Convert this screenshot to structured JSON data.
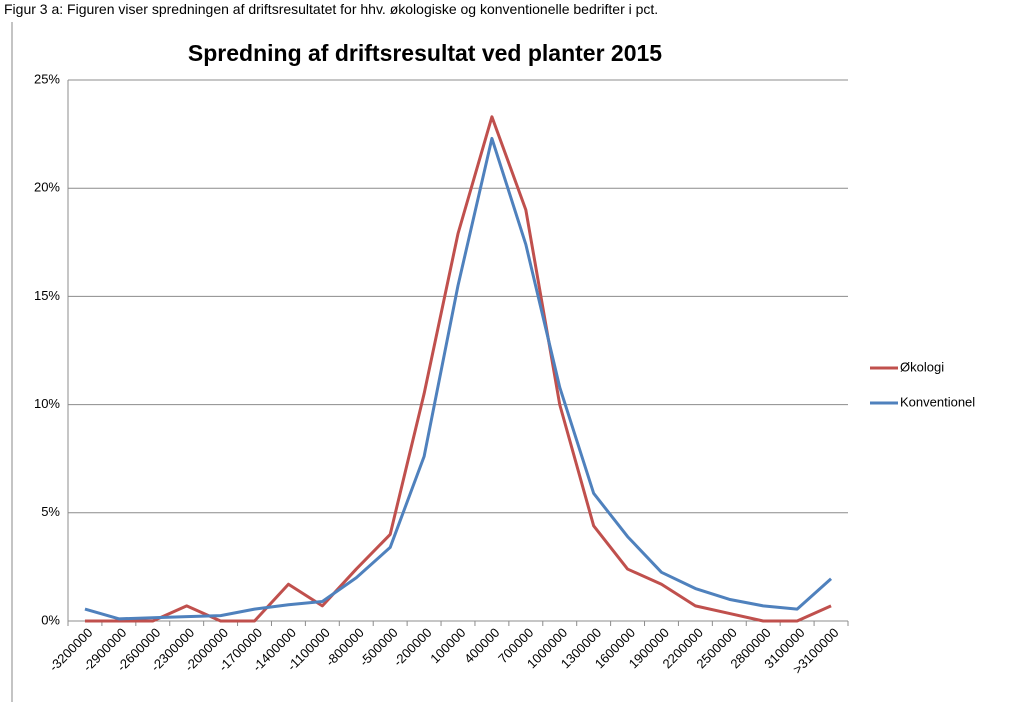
{
  "caption": "Figur 3 a: Figuren viser spredningen af driftsresultatet for hhv. økologiske og konventionelle bedrifter i pct.",
  "chart_data": {
    "type": "line",
    "title": "Spredning af driftsresultat ved planter 2015",
    "categories": [
      "-3200000",
      "-2900000",
      "-2600000",
      "-2300000",
      "-2000000",
      "-1700000",
      "-1400000",
      "-1100000",
      "-800000",
      "-500000",
      "-200000",
      "100000",
      "400000",
      "700000",
      "1000000",
      "1300000",
      "1600000",
      "1900000",
      "2200000",
      "2500000",
      "2800000",
      "3100000",
      ">3100000"
    ],
    "series": [
      {
        "name": "Økologi",
        "color": "#c0504d",
        "values": [
          0,
          0,
          0,
          0.7,
          0,
          0,
          1.7,
          0.7,
          2.4,
          4.0,
          10.5,
          17.9,
          23.3,
          19.0,
          10.0,
          4.4,
          2.4,
          1.7,
          0.7,
          0.35,
          0,
          0,
          0.7
        ]
      },
      {
        "name": "Konventionel",
        "color": "#4f81bd",
        "values": [
          0.55,
          0.1,
          0.15,
          0.2,
          0.25,
          0.55,
          0.75,
          0.9,
          2.0,
          3.4,
          7.6,
          15.5,
          22.3,
          17.4,
          10.8,
          5.9,
          3.9,
          2.25,
          1.5,
          1.0,
          0.7,
          0.55,
          1.95
        ]
      }
    ],
    "ylim": [
      0,
      25
    ],
    "yticks": [
      {
        "value": 0,
        "label": "0%"
      },
      {
        "value": 5,
        "label": "5%"
      },
      {
        "value": 10,
        "label": "10%"
      },
      {
        "value": 15,
        "label": "15%"
      },
      {
        "value": 20,
        "label": "20%"
      },
      {
        "value": 25,
        "label": "25%"
      }
    ],
    "grid": true,
    "legend": "right"
  }
}
